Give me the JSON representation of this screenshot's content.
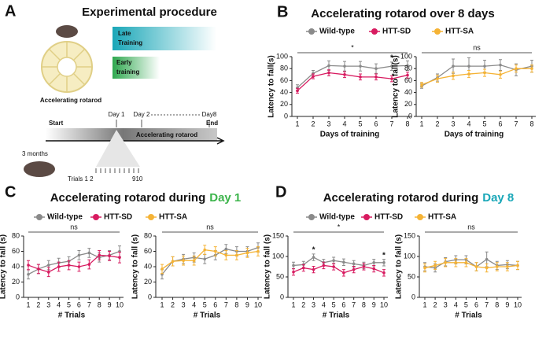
{
  "diagram": {
    "panel_label": "A",
    "title": "Experimental procedure",
    "late_training": [
      "Late",
      "Training"
    ],
    "early_training": [
      "Early",
      "training"
    ],
    "rotarod_label": "Accelerating rotarod",
    "day_labels": [
      "Day 1",
      "Day 2",
      "Day8"
    ],
    "start": "Start",
    "timeline_label": "Accelerating rotarod",
    "end": "End",
    "age": "3 months",
    "trials_label": "Trials 1 2",
    "trials_end": "910"
  },
  "chart_data": [
    {
      "type": "line",
      "panel_label": "B",
      "title": "Accelerating rotarod over 8 days",
      "xlabel": "Days of training",
      "ylabel": "Latency to fall(s)",
      "categories": [
        1,
        2,
        3,
        4,
        5,
        6,
        7,
        8
      ],
      "ylim": [
        0,
        100
      ],
      "yticks": [
        0,
        20,
        40,
        60,
        80,
        100
      ],
      "bracket_label": "*",
      "annotations": [
        {
          "text": "*",
          "x": 7
        }
      ],
      "series": [
        {
          "name": "Wild-type",
          "color": "#8a8a8a",
          "values": [
            48,
            72,
            85,
            84,
            84,
            80,
            84,
            85
          ],
          "errors": [
            5,
            5,
            8,
            8,
            8,
            8,
            7,
            8
          ]
        },
        {
          "name": "HTT-SD",
          "color": "#d81b60",
          "values": [
            43,
            67,
            73,
            70,
            66,
            66,
            63,
            69
          ],
          "errors": [
            4,
            4,
            5,
            5,
            5,
            5,
            5,
            5
          ]
        }
      ]
    },
    {
      "type": "line",
      "xlabel": "Days of training",
      "ylabel": "Latency to fall(s)",
      "categories": [
        1,
        2,
        3,
        4,
        5,
        6,
        7,
        8
      ],
      "ylim": [
        0,
        100
      ],
      "yticks": [
        0,
        20,
        40,
        60,
        80,
        100
      ],
      "bracket_label": "ns",
      "series": [
        {
          "name": "Wild-type",
          "color": "#8a8a8a",
          "values": [
            51,
            65,
            84,
            84,
            84,
            86,
            78,
            84
          ],
          "errors": [
            4,
            6,
            12,
            14,
            10,
            9,
            10,
            10
          ]
        },
        {
          "name": "HTT-SA",
          "color": "#f5b335",
          "values": [
            53,
            63,
            68,
            71,
            73,
            70,
            80,
            80
          ],
          "errors": [
            4,
            6,
            6,
            6,
            6,
            6,
            6,
            6
          ]
        }
      ]
    },
    {
      "type": "line",
      "panel_label": "C",
      "title": "Accelerating rotarod during",
      "title_highlight": "Day 1",
      "title_highlight_color": "#3cb44b",
      "xlabel": "# Trials",
      "ylabel": "Latency to fall (s)",
      "categories": [
        1,
        2,
        3,
        4,
        5,
        6,
        7,
        8,
        9,
        10
      ],
      "ylim": [
        0,
        80
      ],
      "yticks": [
        0,
        20,
        40,
        60,
        80
      ],
      "bracket_label": "ns",
      "series": [
        {
          "name": "Wild-type",
          "color": "#8a8a8a",
          "values": [
            30,
            37,
            42,
            45,
            47,
            55,
            58,
            52,
            55,
            60
          ],
          "errors": [
            6,
            6,
            6,
            6,
            6,
            6,
            6,
            6,
            6,
            7
          ]
        },
        {
          "name": "HTT-SD",
          "color": "#d81b60",
          "values": [
            42,
            37,
            33,
            40,
            42,
            40,
            43,
            55,
            54,
            52
          ],
          "errors": [
            6,
            6,
            6,
            6,
            6,
            6,
            6,
            6,
            6,
            7
          ]
        }
      ]
    },
    {
      "type": "line",
      "xlabel": "# Trials",
      "ylabel": "Latency to fall (s)",
      "categories": [
        1,
        2,
        3,
        4,
        5,
        6,
        7,
        8,
        9,
        10
      ],
      "ylim": [
        0,
        80
      ],
      "yticks": [
        0,
        20,
        40,
        60,
        80
      ],
      "bracket_label": "ns",
      "series": [
        {
          "name": "Wild-type",
          "color": "#8a8a8a",
          "values": [
            30,
            47,
            50,
            52,
            50,
            55,
            63,
            60,
            60,
            65
          ],
          "errors": [
            6,
            6,
            6,
            6,
            6,
            6,
            6,
            6,
            6,
            6
          ]
        },
        {
          "name": "HTT-SA",
          "color": "#f5b335",
          "values": [
            37,
            47,
            48,
            48,
            62,
            60,
            55,
            55,
            58,
            60
          ],
          "errors": [
            6,
            6,
            6,
            6,
            6,
            6,
            6,
            6,
            6,
            6
          ]
        }
      ]
    },
    {
      "type": "line",
      "panel_label": "D",
      "title": "Accelerating rotarod during",
      "title_highlight": "Day 8",
      "title_highlight_color": "#1aa7b8",
      "xlabel": "# Trials",
      "ylabel": "Latency to fall (s)",
      "categories": [
        1,
        2,
        3,
        4,
        5,
        6,
        7,
        8,
        9,
        10
      ],
      "ylim": [
        0,
        150
      ],
      "yticks": [
        0,
        50,
        100,
        150
      ],
      "bracket_label": "*",
      "annotations": [
        {
          "text": "*",
          "x": 3
        },
        {
          "text": "*",
          "x": 10
        }
      ],
      "series": [
        {
          "name": "Wild-type",
          "color": "#8a8a8a",
          "values": [
            78,
            80,
            98,
            85,
            90,
            86,
            82,
            78,
            85,
            85
          ],
          "errors": [
            8,
            8,
            8,
            8,
            8,
            8,
            8,
            8,
            8,
            8
          ]
        },
        {
          "name": "HTT-SD",
          "color": "#d81b60",
          "values": [
            62,
            72,
            68,
            78,
            75,
            60,
            68,
            75,
            70,
            60
          ],
          "errors": [
            8,
            8,
            8,
            8,
            8,
            8,
            8,
            8,
            8,
            8
          ]
        }
      ]
    },
    {
      "type": "line",
      "xlabel": "# Trials",
      "ylabel": "Latency to fall (s)",
      "categories": [
        1,
        2,
        3,
        4,
        5,
        6,
        7,
        8,
        9,
        10
      ],
      "ylim": [
        0,
        150
      ],
      "yticks": [
        0,
        50,
        100,
        150
      ],
      "bracket_label": "ns",
      "series": [
        {
          "name": "Wild-type",
          "color": "#8a8a8a",
          "values": [
            75,
            72,
            87,
            92,
            92,
            75,
            93,
            78,
            80,
            78
          ],
          "errors": [
            10,
            10,
            10,
            10,
            10,
            10,
            18,
            10,
            10,
            10
          ]
        },
        {
          "name": "HTT-SA",
          "color": "#f5b335",
          "values": [
            72,
            78,
            85,
            85,
            85,
            75,
            72,
            75,
            75,
            78
          ],
          "errors": [
            10,
            10,
            10,
            10,
            10,
            10,
            10,
            10,
            10,
            10
          ]
        }
      ]
    }
  ]
}
